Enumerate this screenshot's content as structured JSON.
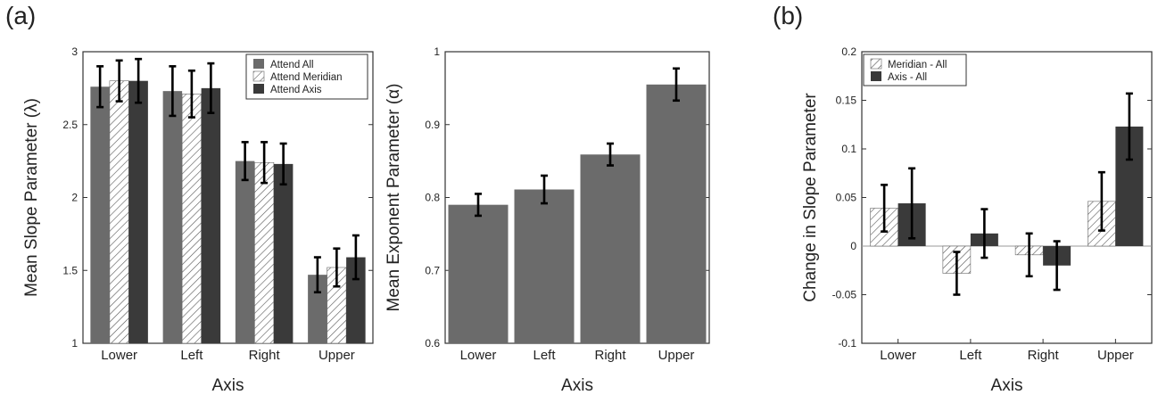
{
  "panel_labels": {
    "a": "(a)",
    "b": "(b)"
  },
  "colors": {
    "attend_all": "#6b6b6b",
    "attend_axis": "#3a3a3a",
    "hatch": "#555555",
    "frame": "#333333"
  },
  "chart_data": [
    {
      "type": "bar",
      "categories": [
        "Lower",
        "Left",
        "Right",
        "Upper"
      ],
      "xlabel": "Axis",
      "ylabel": "Mean Slope Parameter (λ)",
      "ylim": [
        1,
        3
      ],
      "yticks": [
        1,
        1.5,
        2,
        2.5,
        3
      ],
      "legend_position": "top-right",
      "series": [
        {
          "name": "Attend All",
          "style": "solid-medium",
          "values": [
            2.76,
            2.73,
            2.25,
            1.47
          ],
          "errors": [
            0.14,
            0.17,
            0.13,
            0.12
          ]
        },
        {
          "name": "Attend Meridian",
          "style": "hatched",
          "values": [
            2.8,
            2.71,
            2.24,
            1.52
          ],
          "errors": [
            0.14,
            0.16,
            0.14,
            0.13
          ]
        },
        {
          "name": "Attend Axis",
          "style": "solid-dark",
          "values": [
            2.8,
            2.75,
            2.23,
            1.59
          ],
          "errors": [
            0.15,
            0.17,
            0.14,
            0.15
          ]
        }
      ]
    },
    {
      "type": "bar",
      "categories": [
        "Lower",
        "Left",
        "Right",
        "Upper"
      ],
      "xlabel": "Axis",
      "ylabel": "Mean Exponent Parameter (α)",
      "ylim": [
        0.6,
        1
      ],
      "yticks": [
        0.6,
        0.7,
        0.8,
        0.9,
        1
      ],
      "series": [
        {
          "style": "solid-medium",
          "values": [
            0.79,
            0.811,
            0.859,
            0.955
          ],
          "errors": [
            0.015,
            0.019,
            0.015,
            0.022
          ]
        }
      ]
    },
    {
      "type": "bar",
      "categories": [
        "Lower",
        "Left",
        "Right",
        "Upper"
      ],
      "xlabel": "Axis",
      "ylabel": "Change in Slope Parameter",
      "ylim": [
        -0.1,
        0.2
      ],
      "yticks": [
        -0.1,
        -0.05,
        0,
        0.05,
        0.1,
        0.15,
        0.2
      ],
      "legend_position": "top-left",
      "series": [
        {
          "name": "Meridian - All",
          "style": "hatched",
          "values": [
            0.039,
            -0.028,
            -0.009,
            0.046
          ],
          "errors": [
            0.024,
            0.022,
            0.022,
            0.03
          ]
        },
        {
          "name": "Axis - All",
          "style": "solid-dark",
          "values": [
            0.044,
            0.013,
            -0.02,
            0.123
          ],
          "errors": [
            0.036,
            0.025,
            0.025,
            0.034
          ]
        }
      ]
    }
  ]
}
